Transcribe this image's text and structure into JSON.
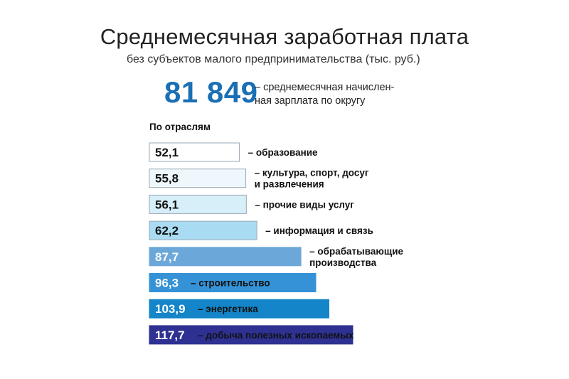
{
  "title": "Среднемесячная заработная плата",
  "subtitle": "без субъектов малого предпринимательства (тыс. руб.)",
  "headline": {
    "value": "81 849",
    "description_line1": "– среднемесячная начислен-",
    "description_line2": "ная зарплата по округу"
  },
  "section_label": "По отраслям",
  "chart_data": {
    "type": "bar",
    "orientation": "horizontal",
    "unit": "тыс. руб.",
    "categories": [
      "образование",
      "культура, спорт, досуг и развлечения",
      "прочие виды услуг",
      "информация и связь",
      "обрабатывающие производства",
      "строительство",
      "энергетика",
      "добыча полезных ископаемых"
    ],
    "category_lines": [
      [
        "– образование"
      ],
      [
        "– культура, спорт, досуг",
        "и развлечения"
      ],
      [
        "– прочие виды услуг"
      ],
      [
        "– информация и связь"
      ],
      [
        "– обрабатывающие",
        "производства"
      ],
      [
        "– строительство"
      ],
      [
        "– энергетика"
      ],
      [
        "– добыча полезных ископаемых"
      ]
    ],
    "values": [
      52.1,
      55.8,
      56.1,
      62.2,
      87.7,
      96.3,
      103.9,
      117.7
    ],
    "value_labels": [
      "52,1",
      "55,8",
      "56,1",
      "62,2",
      "87,7",
      "96,3",
      "103,9",
      "117,7"
    ],
    "colors": [
      "#ffffff",
      "#eef7fc",
      "#d7eff9",
      "#a9dcf3",
      "#6ba8d9",
      "#3592d6",
      "#1385c8",
      "#2e3192"
    ],
    "value_text_colors": [
      "#111111",
      "#111111",
      "#111111",
      "#111111",
      "#ffffff",
      "#ffffff",
      "#ffffff",
      "#ffffff"
    ],
    "label_inside": [
      false,
      false,
      false,
      false,
      false,
      true,
      true,
      true
    ]
  }
}
